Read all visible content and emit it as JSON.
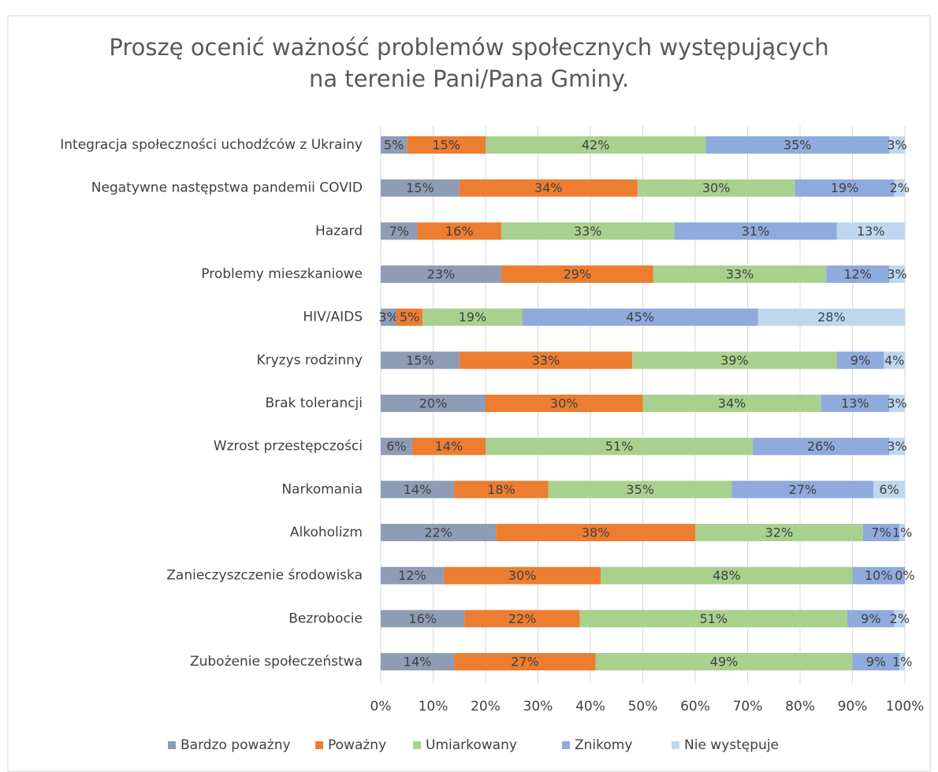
{
  "chart_data": {
    "type": "bar",
    "orientation": "horizontal",
    "stacked": true,
    "title": [
      "Proszę ocenić ważność problemów społecznych występujących",
      "na terenie Pani/Pana Gminy."
    ],
    "categories": [
      "Integracja społeczności uchodźców z Ukrainy",
      "Negatywne następstwa pandemii COVID",
      "Hazard",
      "Problemy mieszkaniowe",
      "HIV/AIDS",
      "Kryzys rodzinny",
      "Brak tolerancji",
      "Wzrost przestępczości",
      "Narkomania",
      "Alkoholizm",
      "Zanieczyszczenie środowiska",
      "Bezrobocie",
      "Zubożenie społeczeństwa"
    ],
    "series": [
      {
        "name": "Bardzo poważny",
        "color": "#8e9cb5",
        "values": [
          5,
          15,
          7,
          23,
          3,
          15,
          20,
          6,
          14,
          22,
          12,
          16,
          14
        ],
        "value_labels": [
          "5%",
          "15%",
          "7%",
          "23%",
          "3%",
          "15%",
          "20%",
          "6%",
          "14%",
          "22%",
          "12%",
          "16%",
          "14%"
        ]
      },
      {
        "name": "Poważny",
        "color": "#ed7d31",
        "values": [
          15,
          34,
          16,
          29,
          5,
          33,
          30,
          14,
          18,
          38,
          30,
          22,
          27
        ],
        "value_labels": [
          "15%",
          "34%",
          "16%",
          "29%",
          "5%",
          "33%",
          "30%",
          "14%",
          "18%",
          "38%",
          "30%",
          "22%",
          "27%"
        ]
      },
      {
        "name": "Umiarkowany",
        "color": "#a9d18e",
        "values": [
          42,
          30,
          33,
          33,
          19,
          39,
          34,
          51,
          35,
          32,
          48,
          51,
          49
        ],
        "value_labels": [
          "42%",
          "30%",
          "33%",
          "33%",
          "19%",
          "39%",
          "34%",
          "51%",
          "35%",
          "32%",
          "48%",
          "51%",
          "49%"
        ]
      },
      {
        "name": "Znikomy",
        "color": "#8faadc",
        "values": [
          35,
          19,
          31,
          12,
          45,
          9,
          13,
          26,
          27,
          7,
          10,
          9,
          9
        ],
        "value_labels": [
          "35%",
          "19%",
          "31%",
          "12%",
          "45%",
          "9%",
          "13%",
          "26%",
          "27%",
          "7%",
          "10%",
          "9%",
          "9%"
        ]
      },
      {
        "name": "Nie występuje",
        "color": "#bdd7ee",
        "values": [
          3,
          2,
          13,
          3,
          28,
          4,
          3,
          3,
          6,
          1,
          0,
          2,
          1
        ],
        "value_labels": [
          "3%",
          "2%",
          "13%",
          "3%",
          "28%",
          "4%",
          "3%",
          "3%",
          "6%",
          "1%",
          "0%",
          "2%",
          "1%"
        ]
      }
    ],
    "xlim": [
      0,
      100
    ],
    "xticks": [
      {
        "value": 0,
        "label": "0%"
      },
      {
        "value": 10,
        "label": "10%"
      },
      {
        "value": 20,
        "label": "20%"
      },
      {
        "value": 30,
        "label": "30%"
      },
      {
        "value": 40,
        "label": "40%"
      },
      {
        "value": 50,
        "label": "50%"
      },
      {
        "value": 60,
        "label": "60%"
      },
      {
        "value": 70,
        "label": "70%"
      },
      {
        "value": 80,
        "label": "80%"
      },
      {
        "value": 90,
        "label": "90%"
      },
      {
        "value": 100,
        "label": "100%"
      }
    ],
    "grid": true,
    "legend": "bottom"
  }
}
